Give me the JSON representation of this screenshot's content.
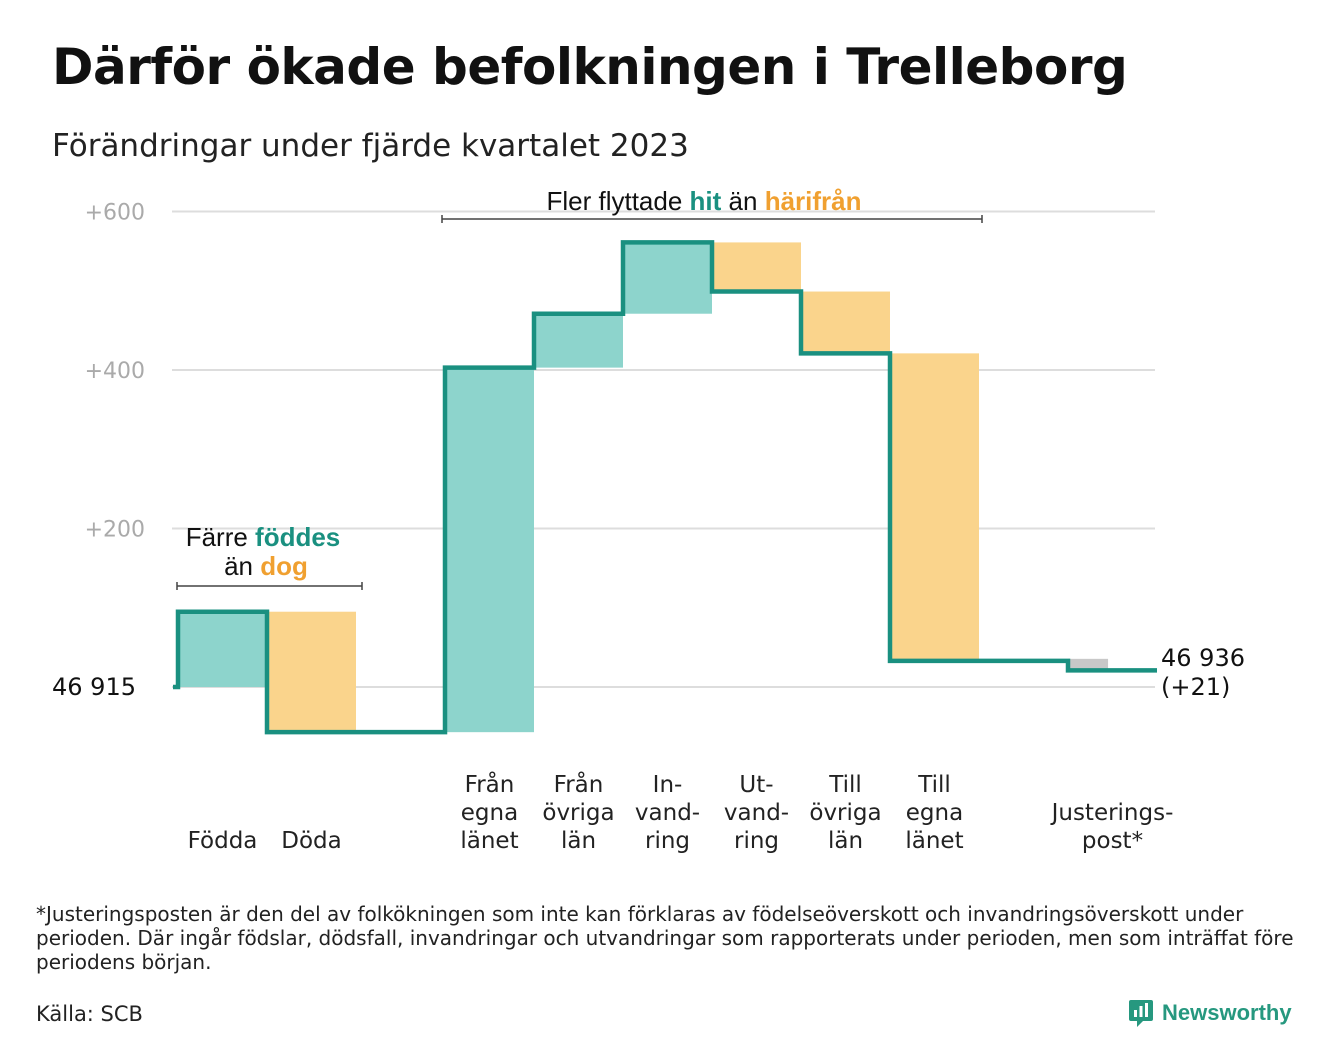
{
  "title": "Därför ökade befolkningen i Trelleborg",
  "subtitle": "Förändringar under fjärde kvartalet 2023",
  "footnote": "*Justeringsposten är den del av folkökningen som inte kan förklaras av födelseöverskott och invandringsöverskott under perioden. Där ingår födslar, dödsfall, invandringar och utvandringar som rapporterats under perioden, men som inträffat före periodens början.",
  "source": "Källa: SCB",
  "brand": "Newsworthy",
  "colors": {
    "increase": "#8dd4cc",
    "decrease": "#fad48c",
    "adjustment": "#c8c8c8",
    "line": "#1a9080",
    "accent_green": "#1a9080",
    "accent_orange": "#f0a030",
    "grid": "#dddddd",
    "tick": "#aaaaaa"
  },
  "annotations": {
    "births_deaths": {
      "line1_prefix": "Färre",
      "line1_highlight": "föddes",
      "line2_prefix": "än",
      "line2_highlight": "dog"
    },
    "migration": {
      "prefix": "Fler flyttade",
      "highlight1": "hit",
      "middle": "än",
      "highlight2": "härifrån"
    }
  },
  "chart_data": {
    "type": "waterfall",
    "title": "Därför ökade befolkningen i Trelleborg",
    "subtitle": "Förändringar under fjärde kvartalet 2023",
    "start_value": 46915,
    "start_label": "46  915",
    "end_value": 46936,
    "end_label": "46 936",
    "end_change_label": "(+21)",
    "y_ticks": [
      {
        "value": 200,
        "label": "+200"
      },
      {
        "value": 400,
        "label": "+400"
      },
      {
        "value": 600,
        "label": "+600"
      }
    ],
    "ylim": [
      -70,
      650
    ],
    "steps": [
      {
        "label_lines": [
          "Födda"
        ],
        "change": 95,
        "kind": "increase"
      },
      {
        "label_lines": [
          "Döda"
        ],
        "change": -152,
        "kind": "decrease"
      },
      {
        "label_lines": [],
        "change": 0,
        "kind": "gap"
      },
      {
        "label_lines": [
          "Från",
          "egna",
          "länet"
        ],
        "change": 460,
        "kind": "increase"
      },
      {
        "label_lines": [
          "Från",
          "övriga",
          "län"
        ],
        "change": 68,
        "kind": "increase"
      },
      {
        "label_lines": [
          "In-",
          "vand-",
          "ring"
        ],
        "change": 90,
        "kind": "increase"
      },
      {
        "label_lines": [
          "Ut-",
          "vand-",
          "ring"
        ],
        "change": -62,
        "kind": "decrease"
      },
      {
        "label_lines": [
          "Till",
          "övriga",
          "län"
        ],
        "change": -78,
        "kind": "decrease"
      },
      {
        "label_lines": [
          "Till",
          "egna",
          "länet"
        ],
        "change": -388,
        "kind": "decrease"
      },
      {
        "label_lines": [],
        "change": 0,
        "kind": "gap"
      },
      {
        "label_lines": [
          "Justerings-",
          "post*"
        ],
        "change": -12,
        "kind": "adjustment"
      }
    ]
  }
}
